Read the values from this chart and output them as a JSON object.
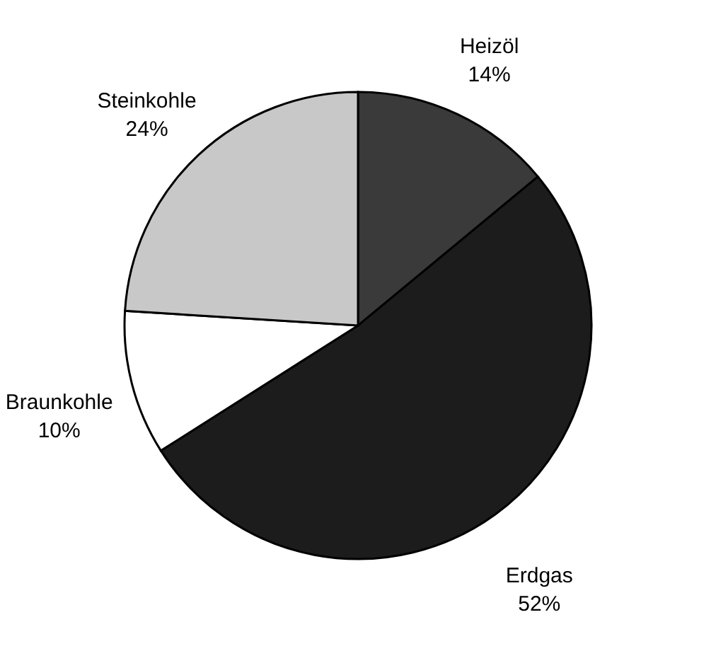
{
  "chart_data": {
    "type": "pie",
    "categories": [
      "Heizöl",
      "Erdgas",
      "Braunkohle",
      "Steinkohle"
    ],
    "values": [
      14,
      52,
      10,
      24
    ],
    "value_labels": [
      "14%",
      "52%",
      "10%",
      "24%"
    ],
    "colors": [
      "#3a3a3a",
      "#1c1c1c",
      "#ffffff",
      "#c8c8c8"
    ],
    "legend": false
  }
}
